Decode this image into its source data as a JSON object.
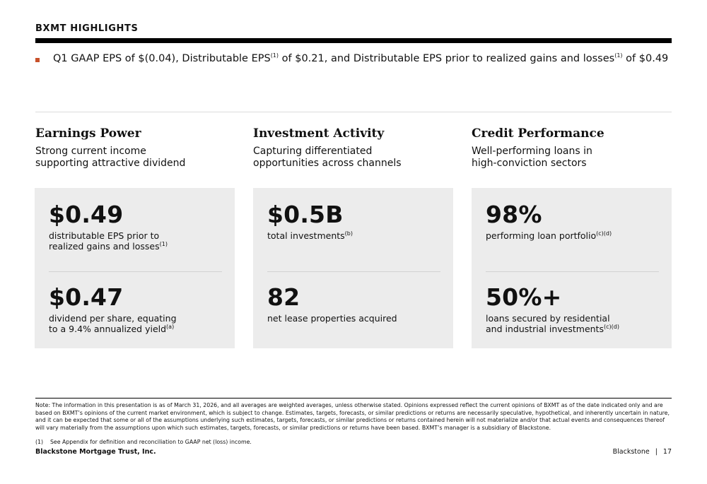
{
  "header": {
    "title": "BXMT HIGHLIGHTS"
  },
  "bullet": {
    "part1": "Q1 GAAP EPS of $(0.04), Distributable EPS",
    "sup1": "(1)",
    "part2": " of $0.21, and Distributable EPS prior to realized gains and losses",
    "sup2": "(1)",
    "part3": " of $0.49"
  },
  "columns": [
    {
      "heading": "Earnings Power",
      "subtitle_line1": "Strong current income",
      "subtitle_line2": "supporting attractive dividend",
      "metrics": [
        {
          "value": "$0.49",
          "desc_line1": "distributable EPS prior to",
          "desc_line2": "realized gains and losses",
          "note": "(1)"
        },
        {
          "value": "$0.47",
          "desc_line1": "dividend per share, equating",
          "desc_line2": "to a 9.4% annualized yield",
          "note": "(a)"
        }
      ]
    },
    {
      "heading": "Investment Activity",
      "subtitle_line1": "Capturing differentiated",
      "subtitle_line2": "opportunities across channels",
      "metrics": [
        {
          "value": "$0.5B",
          "desc_line1": "total investments",
          "desc_line2": "",
          "note": "(b)"
        },
        {
          "value": "82",
          "desc_line1": "net lease properties acquired",
          "desc_line2": "",
          "note": ""
        }
      ]
    },
    {
      "heading": "Credit Performance",
      "subtitle_line1": "Well-performing loans in",
      "subtitle_line2": "high-conviction sectors",
      "metrics": [
        {
          "value": "98%",
          "desc_line1": "performing loan portfolio",
          "desc_line2": "",
          "note": "(c)(d)"
        },
        {
          "value": "50%+",
          "desc_line1": "loans secured by residential",
          "desc_line2": "and industrial investments",
          "note": "(c)(d)"
        }
      ]
    }
  ],
  "footer": {
    "note": "Note: The information in this presentation is as of March 31, 2026, and all averages are weighted averages, unless otherwise stated. Opinions expressed reflect the current opinions of BXMT as of the date indicated only and are based on BXMT’s opinions of the current market environment, which is subject to change. Estimates, targets, forecasts, or similar predictions or returns are necessarily speculative, hypothetical, and inherently uncertain in nature, and it can be expected that some or all of the assumptions underlying such estimates, targets, forecasts, or similar predictions or returns contained herein will not materialize and/or that actual events and consequences thereof will vary materially from the assumptions upon which such estimates, targets, forecasts, or similar predictions or returns have been based. BXMT’s manager is a subsidiary of Blackstone.",
    "ref_num": "(1)",
    "ref_text": "See Appendix for definition and reconciliation to GAAP net (loss) income.",
    "company": "Blackstone Mortgage Trust, Inc.",
    "brand": "Blackstone",
    "separator": "|",
    "page": "17"
  },
  "colors": {
    "accent": "#c8512a",
    "card_bg": "#ececec",
    "rule": "#000000"
  }
}
